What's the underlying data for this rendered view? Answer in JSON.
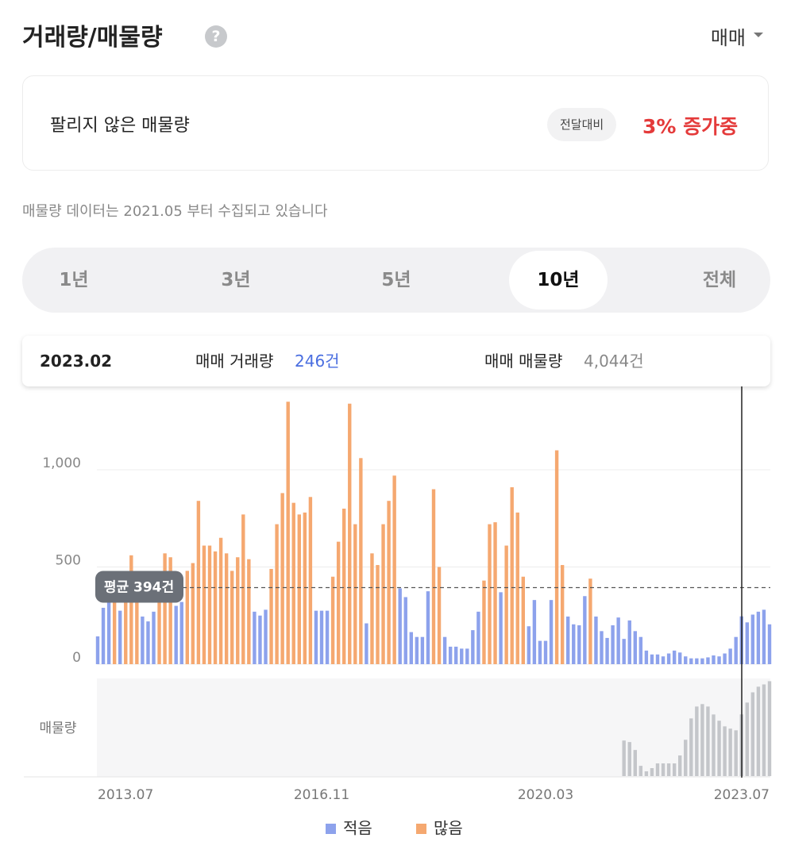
{
  "header": {
    "title": "거래량/매물량",
    "dropdown": "매매"
  },
  "summary": {
    "label": "팔리지 않은 매물량",
    "badge": "전달대비",
    "change": "3% 증가중"
  },
  "note": "매물량 데이터는 2021.05 부터 수집되고 있습니다",
  "tabs": [
    "1년",
    "3년",
    "5년",
    "10년",
    "전체"
  ],
  "info": {
    "date": "2023.02",
    "volume_label": "매매 거래량",
    "volume": "246건",
    "listing_label": "매매 매물량",
    "listing": "4,044건"
  },
  "chart_data": [
    {
      "type": "bar",
      "categories": [
        "2013.07",
        null,
        null,
        null,
        null,
        null,
        null,
        null,
        null,
        null,
        null,
        null,
        null,
        null,
        null,
        null,
        null,
        null,
        null,
        null,
        null,
        null,
        null,
        null,
        null,
        null,
        null,
        null,
        null,
        null,
        null,
        null,
        null,
        null,
        null,
        null,
        null,
        null,
        null,
        null,
        "2016.11",
        null,
        null,
        null,
        null,
        null,
        null,
        null,
        null,
        null,
        null,
        null,
        null,
        null,
        null,
        null,
        null,
        null,
        null,
        null,
        null,
        null,
        null,
        null,
        null,
        null,
        null,
        null,
        null,
        null,
        null,
        null,
        null,
        null,
        null,
        null,
        null,
        null,
        null,
        null,
        "2020.03",
        null,
        null,
        null,
        null,
        null,
        null,
        null,
        null,
        null,
        null,
        null,
        null,
        null,
        null,
        null,
        null,
        null,
        null,
        null,
        null,
        null,
        null,
        null,
        null,
        null,
        null,
        null,
        null,
        null,
        null,
        null,
        null,
        null,
        null,
        null,
        null,
        null,
        null,
        null,
        "2023.07"
      ],
      "series": [
        {
          "name": "적음",
          "color": "#8da2ec",
          "values": [
            143,
            290,
            340,
            null,
            275,
            null,
            null,
            null,
            245,
            220,
            270,
            null,
            null,
            null,
            300,
            320,
            null,
            null,
            null,
            null,
            null,
            null,
            null,
            null,
            null,
            null,
            null,
            null,
            270,
            250,
            280,
            null,
            null,
            null,
            null,
            null,
            null,
            null,
            null,
            275,
            275,
            275,
            null,
            null,
            null,
            null,
            null,
            null,
            210,
            null,
            null,
            null,
            null,
            null,
            390,
            345,
            165,
            140,
            140,
            375,
            null,
            null,
            140,
            90,
            90,
            80,
            80,
            175,
            270,
            null,
            null,
            null,
            370,
            null,
            null,
            null,
            null,
            195,
            330,
            120,
            120,
            330,
            null,
            null,
            245,
            205,
            200,
            350,
            null,
            245,
            170,
            135,
            200,
            240,
            130,
            225,
            170,
            140,
            70,
            50,
            50,
            40,
            55,
            70,
            60,
            40,
            30,
            30,
            30,
            35,
            45,
            40,
            55,
            80,
            140,
            246,
            215,
            255,
            270,
            280,
            205
          ]
        },
        {
          "name": "많음",
          "color": "#f5a870",
          "values": [
            null,
            null,
            null,
            400,
            null,
            420,
            560,
            420,
            null,
            null,
            null,
            420,
            570,
            550,
            null,
            null,
            480,
            520,
            840,
            610,
            610,
            580,
            650,
            570,
            480,
            550,
            770,
            540,
            null,
            null,
            null,
            490,
            720,
            880,
            1350,
            830,
            770,
            780,
            860,
            null,
            null,
            null,
            450,
            630,
            800,
            1340,
            720,
            1060,
            null,
            570,
            510,
            720,
            840,
            970,
            null,
            null,
            null,
            null,
            null,
            null,
            900,
            500,
            null,
            null,
            null,
            null,
            null,
            null,
            null,
            430,
            720,
            730,
            null,
            610,
            910,
            780,
            450,
            null,
            null,
            null,
            null,
            null,
            1100,
            510,
            null,
            null,
            null,
            null,
            440,
            null,
            null,
            null,
            null,
            null,
            null,
            null,
            null,
            null,
            null,
            null,
            null,
            null,
            null,
            null,
            null,
            null,
            null,
            null,
            null,
            null,
            null,
            null,
            null,
            null,
            null,
            null,
            null,
            null,
            null,
            null,
            null
          ]
        }
      ],
      "ylim": [
        0,
        1400
      ],
      "yticks": [
        0,
        500,
        {
          "value": 1000,
          "label": "1,000"
        }
      ],
      "grid": true,
      "average": {
        "value": 394,
        "label": "평균 394건"
      },
      "legend": "bottom"
    },
    {
      "type": "bar",
      "ylabel": "매물량",
      "color": "#c4c6ca",
      "ylim": [
        0,
        6400
      ],
      "values": [
        null,
        null,
        null,
        null,
        null,
        null,
        null,
        null,
        null,
        null,
        null,
        null,
        null,
        null,
        null,
        null,
        null,
        null,
        null,
        null,
        null,
        null,
        null,
        null,
        null,
        null,
        null,
        null,
        null,
        null,
        null,
        null,
        null,
        null,
        null,
        null,
        null,
        null,
        null,
        null,
        null,
        null,
        null,
        null,
        null,
        null,
        null,
        null,
        null,
        null,
        null,
        null,
        null,
        null,
        null,
        null,
        null,
        null,
        null,
        null,
        null,
        null,
        null,
        null,
        null,
        null,
        null,
        null,
        null,
        null,
        null,
        null,
        null,
        null,
        null,
        null,
        null,
        null,
        null,
        null,
        null,
        null,
        null,
        null,
        null,
        null,
        null,
        null,
        null,
        null,
        null,
        null,
        null,
        null,
        2330,
        2230,
        1710,
        670,
        310,
        520,
        830,
        830,
        830,
        830,
        1350,
        2380,
        3780,
        4560,
        4720,
        4560,
        4040,
        3630,
        3260,
        3110,
        3000,
        4044,
        4820,
        5490,
        5860,
        6010,
        6220
      ]
    }
  ]
}
